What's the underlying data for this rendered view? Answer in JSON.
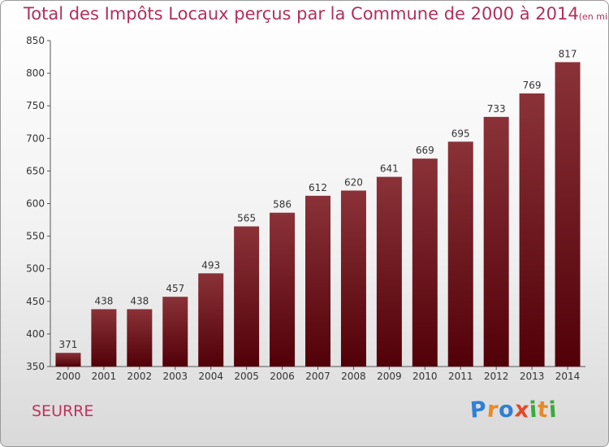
{
  "commune": "SEURRE",
  "logo": {
    "text": "Proxiti",
    "letters": [
      {
        "ch": "P",
        "color": "#2f7fd6"
      },
      {
        "ch": "r",
        "color": "#e8892a"
      },
      {
        "ch": "o",
        "color": "#2f7fd6"
      },
      {
        "ch": "x",
        "color": "#e04a2a"
      },
      {
        "ch": "i",
        "color": "#3aaa3a"
      },
      {
        "ch": "t",
        "color": "#e8892a"
      },
      {
        "ch": "i",
        "color": "#3aaa3a"
      }
    ]
  },
  "chart_data": {
    "type": "bar",
    "title": "Total des Impôts Locaux perçus par la Commune de 2000 à 2014",
    "subtitle": "(en milliers d'€)",
    "categories": [
      "2000",
      "2001",
      "2002",
      "2003",
      "2004",
      "2005",
      "2006",
      "2007",
      "2008",
      "2009",
      "2010",
      "2011",
      "2012",
      "2013",
      "2014"
    ],
    "values": [
      371,
      438,
      438,
      457,
      493,
      565,
      586,
      612,
      620,
      641,
      669,
      695,
      733,
      769,
      817
    ],
    "ylim": [
      350,
      850
    ],
    "yticks": [
      350,
      400,
      450,
      500,
      550,
      600,
      650,
      700,
      750,
      800,
      850
    ],
    "grid": false,
    "colors": {
      "bar_top": "#8a3238",
      "bar_bottom": "#520008",
      "title": "#b0305a"
    }
  }
}
